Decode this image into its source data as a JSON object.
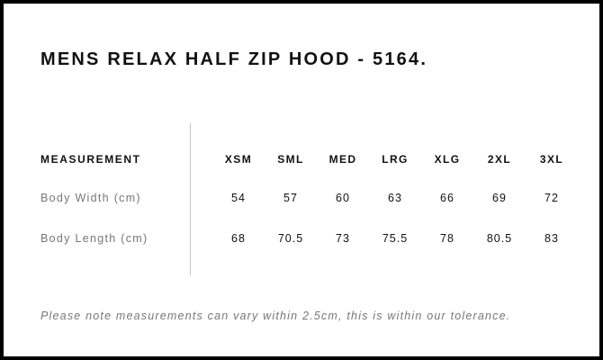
{
  "title": "MENS RELAX HALF ZIP HOOD - 5164.",
  "table": {
    "header_label": "MEASUREMENT",
    "sizes": [
      "XSM",
      "SML",
      "MED",
      "LRG",
      "XLG",
      "2XL",
      "3XL"
    ],
    "rows": [
      {
        "label": "Body Width (cm)",
        "values": [
          "54",
          "57",
          "60",
          "63",
          "66",
          "69",
          "72"
        ]
      },
      {
        "label": "Body Length (cm)",
        "values": [
          "68",
          "70.5",
          "73",
          "75.5",
          "78",
          "80.5",
          "83"
        ]
      }
    ]
  },
  "note": "Please note measurements can vary within 2.5cm, this is within our tolerance."
}
